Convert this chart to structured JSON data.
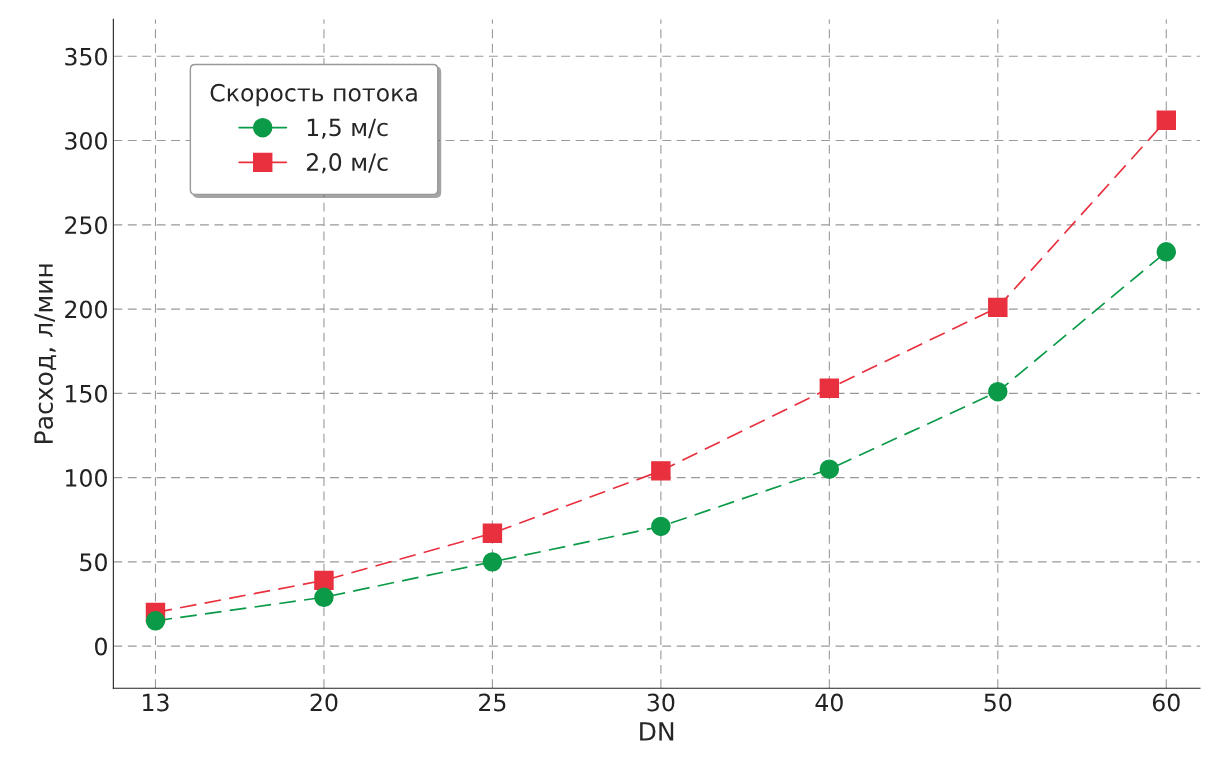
{
  "chart_data": {
    "type": "line",
    "xlabel": "DN",
    "ylabel": "Расход, л/мин",
    "legend_title": "Скорость потока",
    "categories": [
      "13",
      "20",
      "25",
      "30",
      "40",
      "50",
      "60"
    ],
    "series": [
      {
        "name": "1,5 м/с",
        "color": "#0b9a48",
        "marker": "circle",
        "values": [
          15,
          29,
          50,
          71,
          105,
          151,
          234
        ]
      },
      {
        "name": "2,0 м/с",
        "color": "#e8303e",
        "marker": "square",
        "values": [
          20,
          39,
          67,
          104,
          153,
          201,
          312
        ]
      }
    ],
    "ylim": [
      -25,
      372
    ],
    "yticks": [
      0,
      50,
      100,
      150,
      200,
      250,
      300,
      350
    ],
    "grid": true,
    "legend": "top left",
    "line_style": "dashed"
  }
}
